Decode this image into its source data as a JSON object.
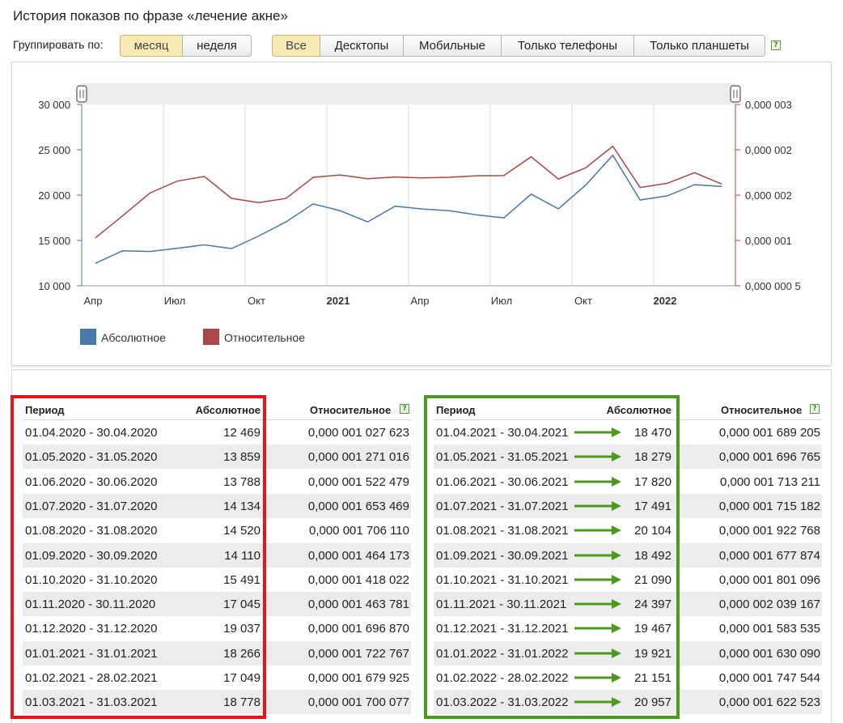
{
  "title": "История показов по фразе «лечение акне»",
  "group_label": "Группировать по:",
  "group_buttons": [
    {
      "label": "месяц",
      "active": true
    },
    {
      "label": "неделя",
      "active": false
    }
  ],
  "device_buttons": [
    {
      "label": "Все",
      "active": true
    },
    {
      "label": "Десктопы",
      "active": false
    },
    {
      "label": "Мобильные",
      "active": false
    },
    {
      "label": "Только телефоны",
      "active": false
    },
    {
      "label": "Только планшеты",
      "active": false
    }
  ],
  "help_glyph": "?",
  "colors": {
    "absolute": "#4a78a8",
    "relative": "#a84848",
    "highlight_red": "#e8141a",
    "highlight_green": "#4b9a1e"
  },
  "chart_data": {
    "type": "line",
    "x": [
      "2020-04",
      "2020-05",
      "2020-06",
      "2020-07",
      "2020-08",
      "2020-09",
      "2020-10",
      "2020-11",
      "2020-12",
      "2021-01",
      "2021-02",
      "2021-03",
      "2021-04",
      "2021-05",
      "2021-06",
      "2021-07",
      "2021-08",
      "2021-09",
      "2021-10",
      "2021-11",
      "2021-12",
      "2022-01",
      "2022-02",
      "2022-03"
    ],
    "x_ticks": [
      "Апр",
      "Июл",
      "Окт",
      "2021",
      "Апр",
      "Июл",
      "Окт",
      "2022"
    ],
    "x_tick_index": [
      0,
      3,
      6,
      9,
      12,
      15,
      18,
      21
    ],
    "x_tick_bold": [
      false,
      false,
      false,
      true,
      false,
      false,
      false,
      true
    ],
    "y_left_ticks": [
      "30 000",
      "25 000",
      "20 000",
      "15 000",
      "10 000"
    ],
    "y_left_lim": [
      10000,
      30000
    ],
    "y_right_ticks": [
      "0,000 003",
      "0,000 002",
      "0,000 002",
      "0,000 001",
      "0,000 000 5"
    ],
    "y_right_lim": [
      5e-07,
      2.5e-06
    ],
    "grid": "vertical",
    "legend_position": "bottom-left",
    "series": [
      {
        "name": "Абсолютное",
        "axis": "left",
        "values": [
          12469,
          13859,
          13788,
          14134,
          14520,
          14110,
          15491,
          17045,
          19037,
          18266,
          17049,
          18778,
          18470,
          18279,
          17820,
          17491,
          20104,
          18492,
          21090,
          24397,
          19467,
          19921,
          21151,
          20957
        ]
      },
      {
        "name": "Относительное",
        "axis": "right",
        "values": [
          1.027623e-06,
          1.271016e-06,
          1.522479e-06,
          1.653469e-06,
          1.70611e-06,
          1.464173e-06,
          1.418022e-06,
          1.463781e-06,
          1.69687e-06,
          1.722767e-06,
          1.679925e-06,
          1.700077e-06,
          1.689205e-06,
          1.696765e-06,
          1.713211e-06,
          1.715182e-06,
          1.922768e-06,
          1.677874e-06,
          1.801096e-06,
          2.039167e-06,
          1.583535e-06,
          1.63009e-06,
          1.747544e-06,
          1.622523e-06
        ]
      }
    ]
  },
  "table_headers": {
    "period": "Период",
    "absolute": "Абсолютное",
    "relative": "Относительное"
  },
  "table_left": [
    {
      "period": "01.04.2020 - 30.04.2020",
      "absolute": "12 469",
      "relative": "0,000 001 027 623"
    },
    {
      "period": "01.05.2020 - 31.05.2020",
      "absolute": "13 859",
      "relative": "0,000 001 271 016"
    },
    {
      "period": "01.06.2020 - 30.06.2020",
      "absolute": "13 788",
      "relative": "0,000 001 522 479"
    },
    {
      "period": "01.07.2020 - 31.07.2020",
      "absolute": "14 134",
      "relative": "0,000 001 653 469"
    },
    {
      "period": "01.08.2020 - 31.08.2020",
      "absolute": "14 520",
      "relative": "0,000 001 706 110"
    },
    {
      "period": "01.09.2020 - 30.09.2020",
      "absolute": "14 110",
      "relative": "0,000 001 464 173"
    },
    {
      "period": "01.10.2020 - 31.10.2020",
      "absolute": "15 491",
      "relative": "0,000 001 418 022"
    },
    {
      "period": "01.11.2020 - 30.11.2020",
      "absolute": "17 045",
      "relative": "0,000 001 463 781"
    },
    {
      "period": "01.12.2020 - 31.12.2020",
      "absolute": "19 037",
      "relative": "0,000 001 696 870"
    },
    {
      "period": "01.01.2021 - 31.01.2021",
      "absolute": "18 266",
      "relative": "0,000 001 722 767"
    },
    {
      "period": "01.02.2021 - 28.02.2021",
      "absolute": "17 049",
      "relative": "0,000 001 679 925"
    },
    {
      "period": "01.03.2021 - 31.03.2021",
      "absolute": "18 778",
      "relative": "0,000 001 700 077"
    }
  ],
  "table_right": [
    {
      "period": "01.04.2021 - 30.04.2021",
      "absolute": "18 470",
      "relative": "0,000 001 689 205"
    },
    {
      "period": "01.05.2021 - 31.05.2021",
      "absolute": "18 279",
      "relative": "0,000 001 696 765"
    },
    {
      "period": "01.06.2021 - 30.06.2021",
      "absolute": "17 820",
      "relative": "0,000 001 713 211"
    },
    {
      "period": "01.07.2021 - 31.07.2021",
      "absolute": "17 491",
      "relative": "0,000 001 715 182"
    },
    {
      "period": "01.08.2021 - 31.08.2021",
      "absolute": "20 104",
      "relative": "0,000 001 922 768"
    },
    {
      "period": "01.09.2021 - 30.09.2021",
      "absolute": "18 492",
      "relative": "0,000 001 677 874"
    },
    {
      "period": "01.10.2021 - 31.10.2021",
      "absolute": "21 090",
      "relative": "0,000 001 801 096"
    },
    {
      "period": "01.11.2021 - 30.11.2021",
      "absolute": "24 397",
      "relative": "0,000 002 039 167"
    },
    {
      "period": "01.12.2021 - 31.12.2021",
      "absolute": "19 467",
      "relative": "0,000 001 583 535"
    },
    {
      "period": "01.01.2022 - 31.01.2022",
      "absolute": "19 921",
      "relative": "0,000 001 630 090"
    },
    {
      "period": "01.02.2022 - 28.02.2022",
      "absolute": "21 151",
      "relative": "0,000 001 747 544"
    },
    {
      "period": "01.03.2022 - 31.03.2022",
      "absolute": "20 957",
      "relative": "0,000 001 622 523"
    }
  ]
}
